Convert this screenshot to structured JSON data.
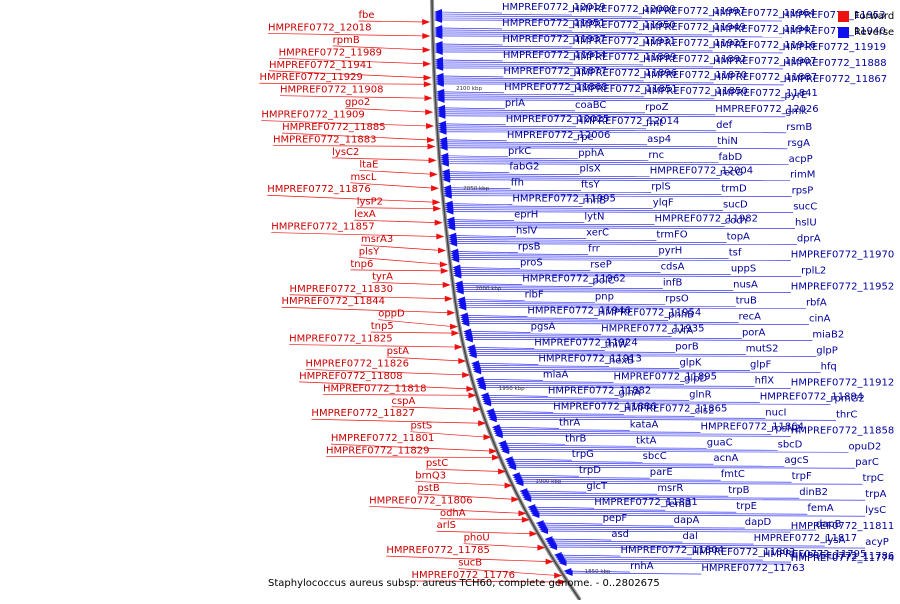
{
  "title": "Staphylococcus aureus subsp. aureus TCH60, complete genome. - 0..2802675",
  "legend": {
    "forward_label": "Forward",
    "reverse_label": "Reverse",
    "forward_color": "#ee1111",
    "reverse_color": "#1111ee"
  },
  "ticks": [
    "2100 kbp",
    "2050 kbp",
    "2000 kbp",
    "1950 kbp",
    "1900 kbp",
    "1850 kbp"
  ],
  "forward_labels": [
    "fbe",
    "HMPREF0772_12018",
    "rpmB",
    "HMPREF0772_11989",
    "HMPREF0772_11941",
    "HMPREF0772_11929",
    "HMPREF0772_11908",
    "gpo2",
    "HMPREF0772_11909",
    "HMPREF0772_11885",
    "HMPREF0772_11883",
    "lysC2",
    "ltaE",
    "mscL",
    "HMPREF0772_11876",
    "lysP2",
    "lexA",
    "HMPREF0772_11857",
    "msrA3",
    "plsY",
    "tnp6",
    "tyrA",
    "HMPREF0772_11830",
    "HMPREF0772_11844",
    "oppD",
    "tnp5",
    "HMPREF0772_11825",
    "pstA",
    "HMPREF0772_11826",
    "HMPREF0772_11808",
    "HMPREF0772_11818",
    "cspA",
    "HMPREF0772_11827",
    "pstS",
    "HMPREF0772_11801",
    "HMPREF0772_11829",
    "pstC",
    "brnQ3",
    "pstB",
    "HMPREF0772_11806",
    "odhA",
    "arlS",
    "phoU",
    "HMPREF0772_11785",
    "sucB",
    "HMPREF0772_11776"
  ],
  "reverse_labels": [
    "HMPREF0772_12019",
    "HMPREF0772_12000",
    "HMPREF0772_11997",
    "HMPREF0772_11964",
    "HMPREF0772_11953",
    "HMPREF0772_11951",
    "HMPREF0772_11950",
    "HMPREF0772_11949",
    "HMPREF0772_11947",
    "HMPREF0772_11940",
    "HMPREF0772_11937",
    "HMPREF0772_11931",
    "HMPREF0772_11925",
    "HMPREF0772_11916",
    "HMPREF0772_11919",
    "HMPREF0772_11914",
    "HMPREF0772_11899",
    "HMPREF0772_11892",
    "HMPREF0772_11907",
    "HMPREF0772_11888",
    "HMPREF0772_11877",
    "HMPREF0772_11896",
    "HMPREF0772_11870",
    "HMPREF0772_11887",
    "HMPREF0772_11867",
    "HMPREF0772_11868",
    "HMPREF0772_11851",
    "HMPREF0772_11850",
    "HMPREF0772_11841",
    "pyrE",
    "priA",
    "coaBC",
    "rpoZ",
    "HMPREF0772_12026",
    "gmk",
    "HMPREF0772_12025",
    "HMPREF0772_12014",
    "fmt",
    "def",
    "rsmB",
    "HMPREF0772_12006",
    "rpe",
    "asp4",
    "thiN",
    "rsgA",
    "prkC",
    "pphA",
    "rnc",
    "fabD",
    "acpP",
    "fabG2",
    "plsX",
    "HMPREF0772_12004",
    "recG",
    "rimM",
    "ffh",
    "ftsY",
    "rplS",
    "trmD",
    "rpsP",
    "HMPREF0772_11995",
    "rnhB",
    "ylqF",
    "sucD",
    "sucC",
    "eprH",
    "lytN",
    "HMPREF0772_11982",
    "codY",
    "hslU",
    "hslV",
    "xerC",
    "trmFO",
    "topA",
    "dprA",
    "rpsB",
    "frr",
    "pyrH",
    "tsf",
    "HMPREF0772_11970",
    "proS",
    "rseP",
    "cdsA",
    "uppS",
    "rplL2",
    "HMPREF0772_11962",
    "polC",
    "infB",
    "nusA",
    "HMPREF0772_11952",
    "ribF",
    "pnp",
    "rpsO",
    "truB",
    "rbfA",
    "HMPREF0772_11946",
    "HMPREF0772_11954",
    "phhB",
    "recA",
    "cinA",
    "pgsA",
    "HMPREF0772_11935",
    "cvfA",
    "porA",
    "miaB2",
    "HMPREF0772_11924",
    "thiW",
    "porB",
    "mutS2",
    "glpP",
    "HMPREF0772_11913",
    "hexB",
    "glpK",
    "glpF",
    "hfq",
    "miaA",
    "HMPREF0772_11895",
    "glpD",
    "hflX",
    "HMPREF0772_11912",
    "HMPREF0772_11882",
    "glnA",
    "glnR",
    "HMPREF0772_11894",
    "rpmG2",
    "HMPREF0772_11886",
    "HMPREF0772_11865",
    "cls2",
    "nucI",
    "thrC",
    "thrA",
    "kataA",
    "HMPREF0772_11864",
    "rpsN2",
    "HMPREF0772_11858",
    "thrB",
    "tktA",
    "guaC",
    "sbcD",
    "opuD2",
    "trpG",
    "sbcC",
    "acnA",
    "agcS",
    "parC",
    "trpD",
    "parE",
    "fmtC",
    "trpF",
    "trpC",
    "glcT",
    "msrR",
    "trpB",
    "dinB2",
    "trpA",
    "HMPREF0772_11831",
    "femB",
    "trpE",
    "femA",
    "lysC",
    "pepF",
    "dapA",
    "dapD",
    "dapB",
    "HMPREF0772_11811",
    "asd",
    "dal",
    "HMPREF0772_11817",
    "lysA",
    "acyP",
    "HMPREF0772_11804",
    "HMPREF0772_11803",
    "HMPREF0772_11795",
    "HMPREF0772_11786",
    "HMPREF0772_11774",
    "rnhA",
    "HMPREF0772_11763"
  ]
}
